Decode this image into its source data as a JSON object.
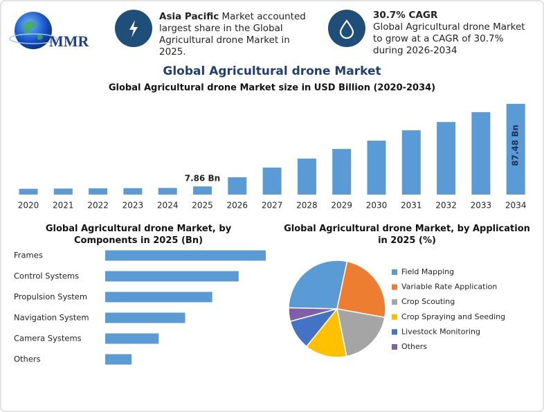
{
  "header": {
    "logo": "MMR",
    "highlights": [
      {
        "bold": "Asia Pacific",
        "text": "Market accounted largest share in the Global Agricultural drone Market in 2025."
      },
      {
        "bold": "30.7% CAGR",
        "text": "Global Agricultural drone Market to grow at a CAGR of 30.7% during 2026-2034"
      }
    ]
  },
  "chart_data": [
    {
      "type": "bar",
      "title": "Global Agricultural drone Market",
      "subtitle": "Global Agricultural drone Market size in USD Billion (2020-2034)",
      "categories": [
        "2020",
        "2021",
        "2022",
        "2023",
        "2024",
        "2025",
        "2026",
        "2027",
        "2028",
        "2029",
        "2030",
        "2031",
        "2032",
        "2033",
        "2034"
      ],
      "values": [
        5.6,
        5.8,
        6.0,
        6.2,
        6.4,
        7.86,
        16.7,
        26,
        34.7,
        44,
        52,
        62,
        70,
        79.5,
        87.48
      ],
      "value_labels": [
        null,
        null,
        null,
        null,
        null,
        "7.86 Bn",
        null,
        null,
        null,
        null,
        null,
        null,
        null,
        null,
        "87.48 Bn"
      ],
      "color": "#5b9bd5"
    },
    {
      "type": "hbar",
      "title": "Global Agricultural drone Market, by Components in 2025 (Bn)",
      "categories": [
        "Frames",
        "Control Systems",
        "Propulsion System",
        "Navigation System",
        "Camera Systems",
        "Others"
      ],
      "values": [
        2.25,
        1.87,
        1.5,
        1.12,
        0.75,
        0.37
      ],
      "color": "#5b9bd5"
    },
    {
      "type": "pie",
      "title": "Global Agricultural drone Market, by Application in 2025 (%)",
      "categories": [
        "Field Mapping",
        "Variable Rate Application",
        "Crop Scouting",
        "Crop Spraying and Seeding",
        "Livestock Monitoring",
        "Others"
      ],
      "values": [
        28,
        24.5,
        19,
        14,
        10,
        4.5
      ],
      "colors": [
        "#5b9bd5",
        "#ed7d31",
        "#a5a5a5",
        "#ffc000",
        "#4472c4",
        "#7f5fa8"
      ]
    }
  ]
}
